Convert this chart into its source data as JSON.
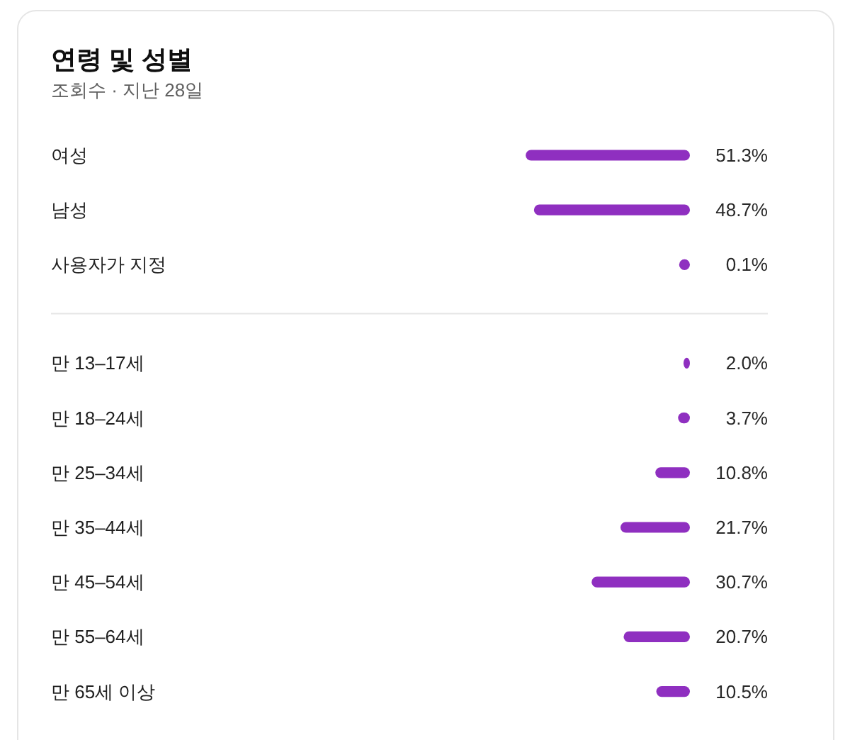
{
  "chart_data": [
    {
      "type": "bar",
      "orientation": "horizontal",
      "title": "연령 및 성별",
      "subtitle": "조회수 · 지난 28일",
      "categories": [
        "여성",
        "남성",
        "사용자가 지정"
      ],
      "values": [
        51.3,
        48.7,
        0.1
      ],
      "value_labels": [
        "51.3%",
        "48.7%",
        "0.1%"
      ],
      "color": "#8f2fc0"
    },
    {
      "type": "bar",
      "orientation": "horizontal",
      "categories": [
        "만 13–17세",
        "만 18–24세",
        "만 25–34세",
        "만 35–44세",
        "만 45–54세",
        "만 55–64세",
        "만 65세 이상"
      ],
      "values": [
        2.0,
        3.7,
        10.8,
        21.7,
        30.7,
        20.7,
        10.5
      ],
      "value_labels": [
        "2.0%",
        "3.7%",
        "10.8%",
        "21.7%",
        "30.7%",
        "20.7%",
        "10.5%"
      ],
      "color": "#8f2fc0"
    }
  ]
}
